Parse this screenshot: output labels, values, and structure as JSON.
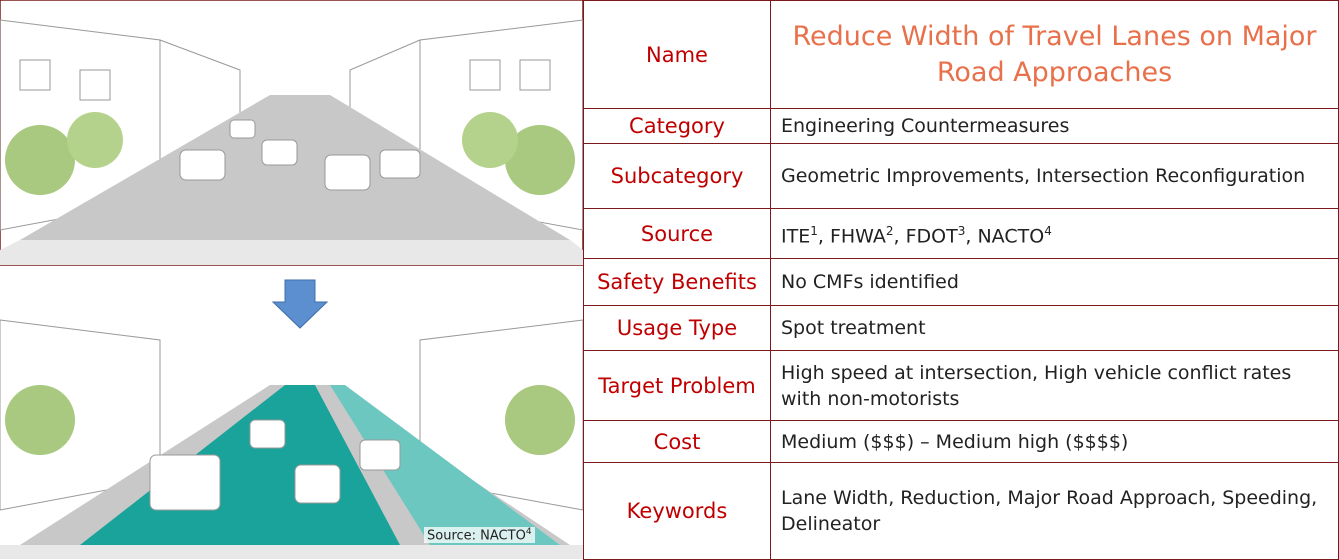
{
  "image": {
    "caption": {
      "text": "Source: NACTO",
      "sup": "4"
    }
  },
  "table": {
    "rows": [
      {
        "label": "Name",
        "value": "Reduce Width of Travel Lanes on Major Road Approaches"
      },
      {
        "label": "Category",
        "value": "Engineering Countermeasures"
      },
      {
        "label": "Subcategory",
        "value": "Geometric Improvements, Intersection Reconfiguration"
      },
      {
        "label": "Source",
        "value": [
          {
            "text": "ITE",
            "sup": "1"
          },
          {
            "text": ", FHWA",
            "sup": "2"
          },
          {
            "text": ", FDOT",
            "sup": "3"
          },
          {
            "text": ", NACTO",
            "sup": "4"
          }
        ]
      },
      {
        "label": "Safety Benefits",
        "value": "No CMFs identified"
      },
      {
        "label": "Usage Type",
        "value": "Spot treatment"
      },
      {
        "label": "Target Problem",
        "value": "High speed at intersection, High vehicle conflict rates with non-motorists"
      },
      {
        "label": "Cost",
        "value": "Medium ($$$) – Medium high ($$$$)"
      },
      {
        "label": "Keywords",
        "value": "Lane Width, Reduction, Major Road Approach, Speeding, Delineator"
      }
    ]
  }
}
